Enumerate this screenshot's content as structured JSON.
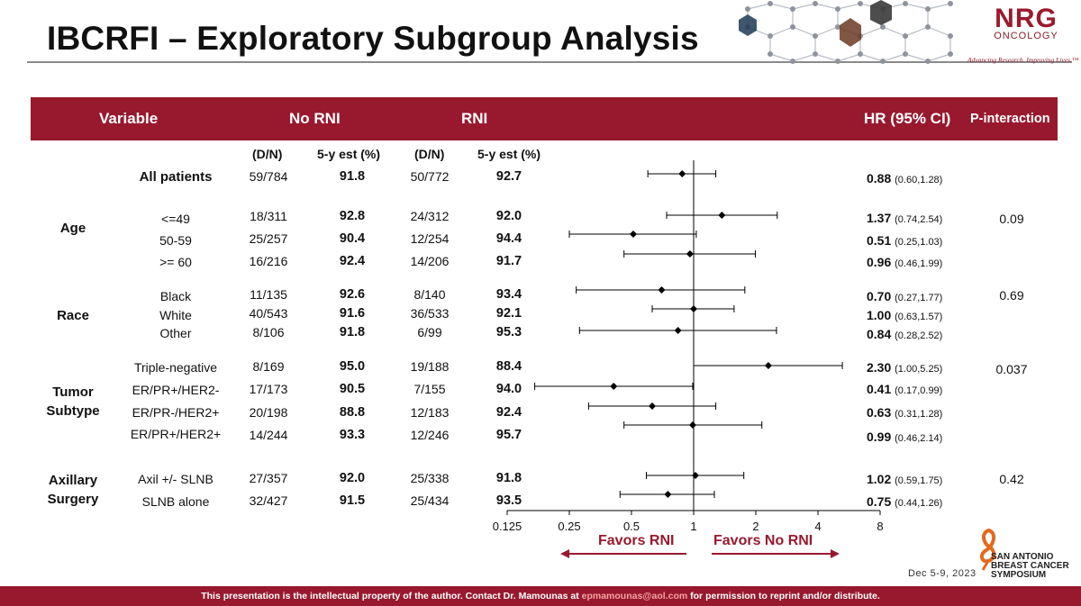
{
  "title": "IBCRFI – Exploratory Subgroup Analysis",
  "logo": {
    "mark": "NRG",
    "sub": "ONCOLOGY",
    "tagline": "Advancing Research. Improving Lives.™"
  },
  "header": {
    "variable": "Variable",
    "no_rni": "No RNI",
    "rni": "RNI",
    "hr": "HR (95% CI)",
    "pint": "P-interaction"
  },
  "subheader": {
    "dn1": "(D/N)",
    "est1": "5-y est (%)",
    "dn2": "(D/N)",
    "est2": "5-y est (%)"
  },
  "groups": {
    "age": "Age",
    "race": "Race",
    "tumor1": "Tumor",
    "tumor2": "Subtype",
    "axil1": "Axillary",
    "axil2": "Surgery"
  },
  "rows": [
    {
      "label": "All patients",
      "dn1": "59/784",
      "est1": "91.8",
      "dn2": "50/772",
      "est2": "92.7",
      "hr": "0.88",
      "ci": "(0.60,1.28)"
    },
    {
      "label": "<=49",
      "dn1": "18/311",
      "est1": "92.8",
      "dn2": "24/312",
      "est2": "92.0",
      "hr": "1.37",
      "ci": "(0.74,2.54)"
    },
    {
      "label": "50-59",
      "dn1": "25/257",
      "est1": "90.4",
      "dn2": "12/254",
      "est2": "94.4",
      "hr": "0.51",
      "ci": "(0.25,1.03)"
    },
    {
      "label": ">= 60",
      "dn1": "16/216",
      "est1": "92.4",
      "dn2": "14/206",
      "est2": "91.7",
      "hr": "0.96",
      "ci": "(0.46,1.99)"
    },
    {
      "label": "Black",
      "dn1": "11/135",
      "est1": "92.6",
      "dn2": "8/140",
      "est2": "93.4",
      "hr": "0.70",
      "ci": "(0.27,1.77)"
    },
    {
      "label": "White",
      "dn1": "40/543",
      "est1": "91.6",
      "dn2": "36/533",
      "est2": "92.1",
      "hr": "1.00",
      "ci": "(0.63,1.57)"
    },
    {
      "label": "Other",
      "dn1": "8/106",
      "est1": "91.8",
      "dn2": "6/99",
      "est2": "95.3",
      "hr": "0.84",
      "ci": "(0.28,2.52)"
    },
    {
      "label": "Triple-negative",
      "dn1": "8/169",
      "est1": "95.0",
      "dn2": "19/188",
      "est2": "88.4",
      "hr": "2.30",
      "ci": "(1.00,5.25)"
    },
    {
      "label": "ER/PR+/HER2-",
      "dn1": "17/173",
      "est1": "90.5",
      "dn2": "7/155",
      "est2": "94.0",
      "hr": "0.41",
      "ci": "(0.17,0.99)"
    },
    {
      "label": "ER/PR-/HER2+",
      "dn1": "20/198",
      "est1": "88.8",
      "dn2": "12/183",
      "est2": "92.4",
      "hr": "0.63",
      "ci": "(0.31,1.28)"
    },
    {
      "label": "ER/PR+/HER2+",
      "dn1": "14/244",
      "est1": "93.3",
      "dn2": "12/246",
      "est2": "95.7",
      "hr": "0.99",
      "ci": "(0.46,2.14)"
    },
    {
      "label": "Axil +/- SLNB",
      "dn1": "27/357",
      "est1": "92.0",
      "dn2": "25/338",
      "est2": "91.8",
      "hr": "1.02",
      "ci": "(0.59,1.75)"
    },
    {
      "label": "SLNB alone",
      "dn1": "32/427",
      "est1": "91.5",
      "dn2": "25/434",
      "est2": "93.5",
      "hr": "0.75",
      "ci": "(0.44,1.26)"
    }
  ],
  "p_interactions": {
    "age": "0.09",
    "race": "0.69",
    "tumor": "0.037",
    "axil": "0.42"
  },
  "favors": {
    "left": "Favors RNI",
    "right": "Favors No RNI"
  },
  "sabcs": {
    "line1": "SAN ANTONIO",
    "line2": "BREAST CANCER",
    "line3": "SYMPOSIUM"
  },
  "date": "Dec 5-9, 2023",
  "footer": {
    "part1": "This presentation is the intellectual property of the author.  Contact Dr. Mamounas at ",
    "email": "epmamounas@aol.com",
    "part2": " for permission to reprint and/or distribute."
  },
  "colors": {
    "brand": "#98192e",
    "marker": "#000000"
  },
  "chart_data": {
    "type": "scatter",
    "title": "",
    "xlabel": "",
    "ylabel": "",
    "x_scale": "log2",
    "x_ticks": [
      "0.125",
      "0.25",
      "0.5",
      "1",
      "2",
      "4",
      "8"
    ],
    "x_tick_values": [
      0.125,
      0.25,
      0.5,
      1,
      2,
      4,
      8
    ],
    "xlim": [
      0.125,
      8
    ],
    "reference_line": 1,
    "categories": [
      "All patients",
      "<=49",
      "50-59",
      ">= 60",
      "Black",
      "White",
      "Other",
      "Triple-negative",
      "ER/PR+/HER2-",
      "ER/PR-/HER2+",
      "ER/PR+/HER2+",
      "Axil +/- SLNB",
      "SLNB alone"
    ],
    "hr": [
      0.88,
      1.37,
      0.51,
      0.96,
      0.7,
      1.0,
      0.84,
      2.3,
      0.41,
      0.63,
      0.99,
      1.02,
      0.75
    ],
    "lower": [
      0.6,
      0.74,
      0.25,
      0.46,
      0.27,
      0.63,
      0.28,
      1.0,
      0.17,
      0.31,
      0.46,
      0.59,
      0.44
    ],
    "upper": [
      1.28,
      2.54,
      1.03,
      1.99,
      1.77,
      1.57,
      2.52,
      5.25,
      0.99,
      1.28,
      2.14,
      1.75,
      1.26
    ]
  }
}
